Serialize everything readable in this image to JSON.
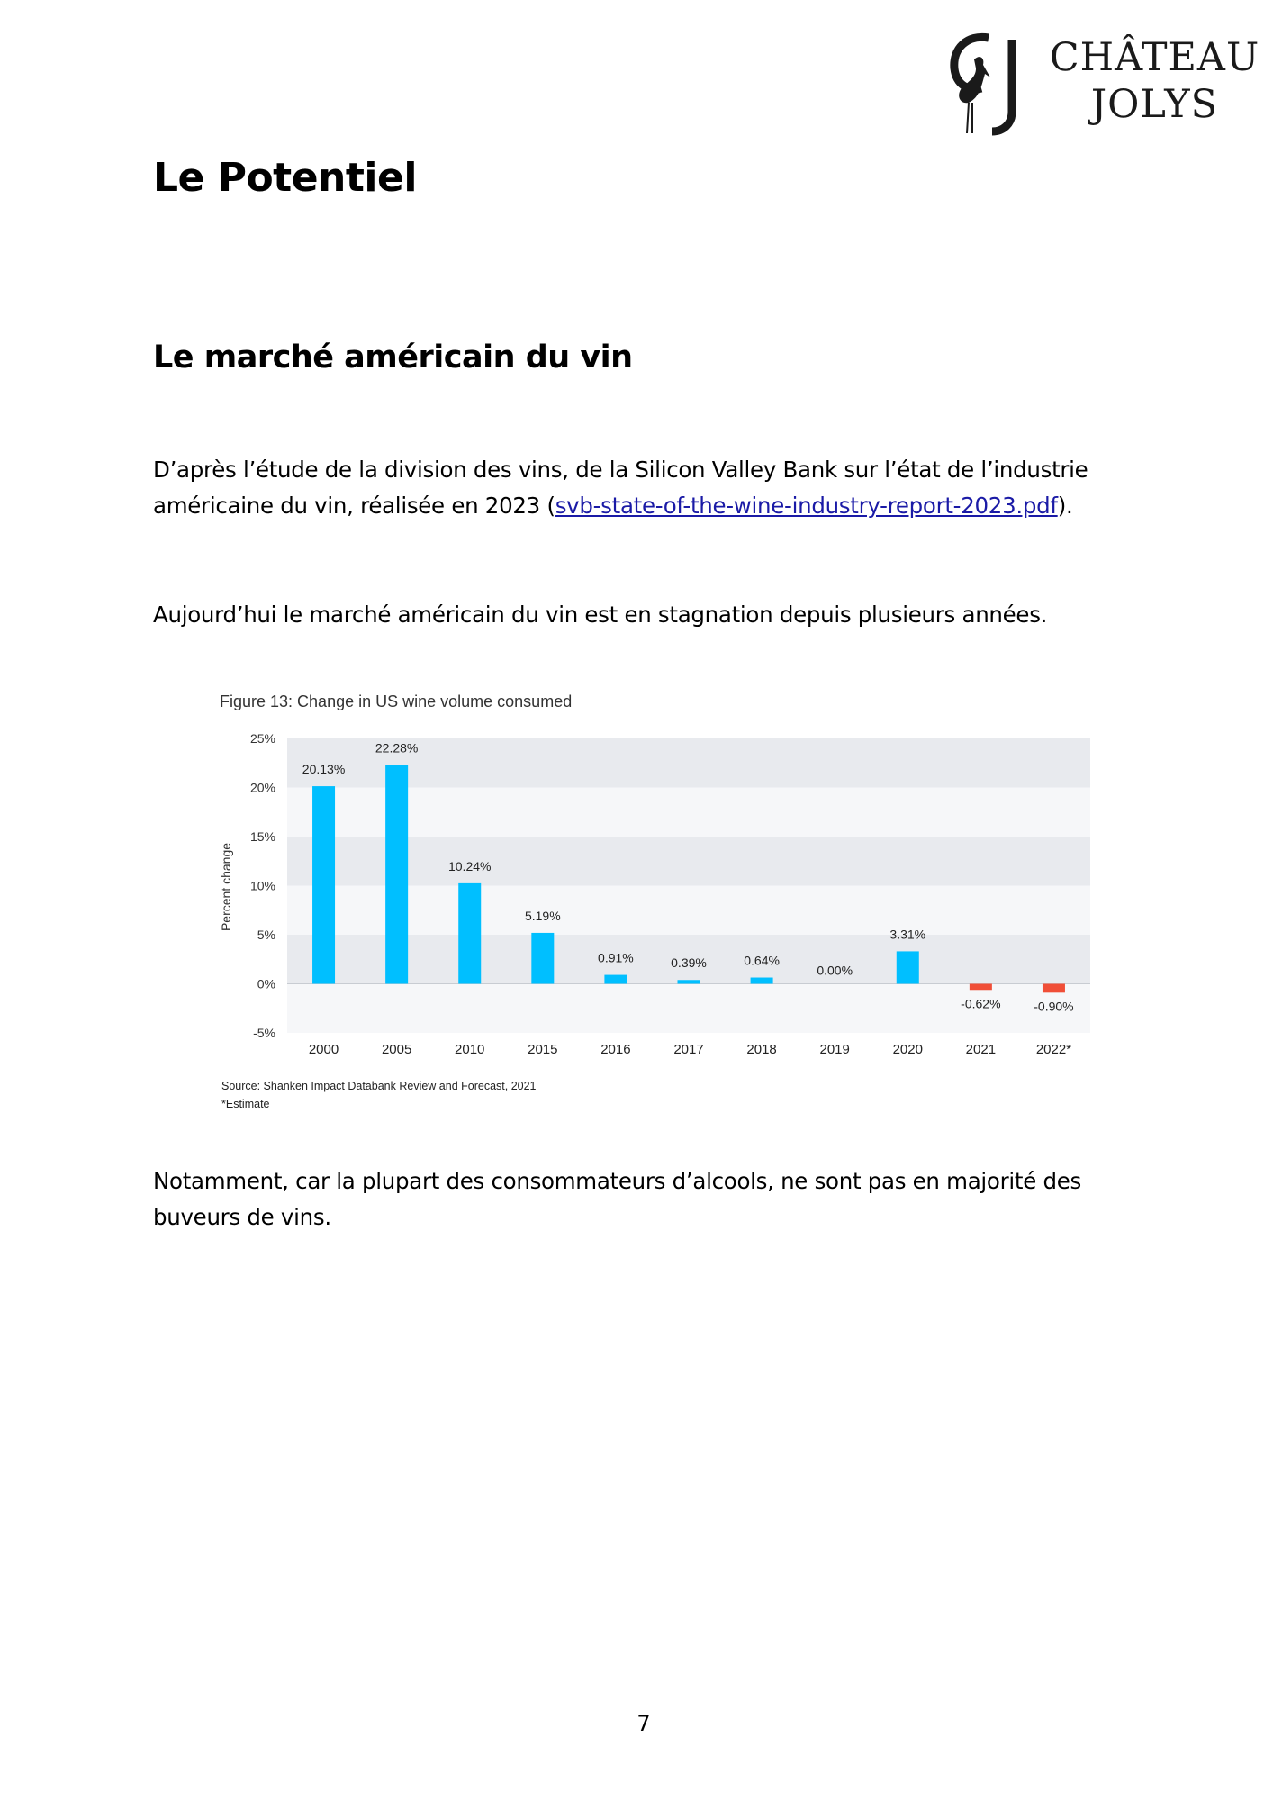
{
  "logo": {
    "line1": "CHÂTEAU",
    "line2": "JOLYS",
    "monogram": "CJ"
  },
  "heading": "Le Potentiel",
  "subheading": "Le marché américain du vin",
  "paragraph1": {
    "before_link": "D’après l’étude de la division des vins, de la Silicon Valley Bank sur l’état de l’industrie américaine du vin, réalisée en 2023 (",
    "link_text": "svb-state-of-the-wine-industry-report-2023.pdf",
    "after_link": ")."
  },
  "paragraph2": "Aujourd’hui le marché américain du vin est en stagnation depuis plusieurs années.",
  "paragraph3": "Notamment, car la plupart des consommateurs d’alcools, ne sont pas en majorité des buveurs de vins.",
  "page_number": "7",
  "chart_data": {
    "type": "bar",
    "title": "Figure 13: Change in US wine volume consumed",
    "xlabel": "",
    "ylabel": "Percent change",
    "categories": [
      "2000",
      "2005",
      "2010",
      "2015",
      "2016",
      "2017",
      "2018",
      "2019",
      "2020",
      "2021",
      "2022*"
    ],
    "values": [
      20.13,
      22.28,
      10.24,
      5.19,
      0.91,
      0.39,
      0.64,
      0.0,
      3.31,
      -0.62,
      -0.9
    ],
    "data_labels": [
      "20.13%",
      "22.28%",
      "10.24%",
      "5.19%",
      "0.91%",
      "0.39%",
      "0.64%",
      "0.00%",
      "3.31%",
      "-0.62%",
      "-0.90%"
    ],
    "ylim": [
      -5,
      25
    ],
    "yticks": [
      25,
      20,
      15,
      10,
      5,
      0,
      -5
    ],
    "ytick_labels": [
      "25%",
      "20%",
      "15%",
      "10%",
      "5%",
      "0%",
      "-5%"
    ],
    "grid": "alternating bands",
    "colors": {
      "positive": "#00BFFF",
      "negative": "#F04E37",
      "band_dark": "#E8EAEE",
      "band_light": "#F6F7F9"
    },
    "source": "Source: Shanken Impact Databank Review and Forecast, 2021",
    "note": "*Estimate"
  }
}
